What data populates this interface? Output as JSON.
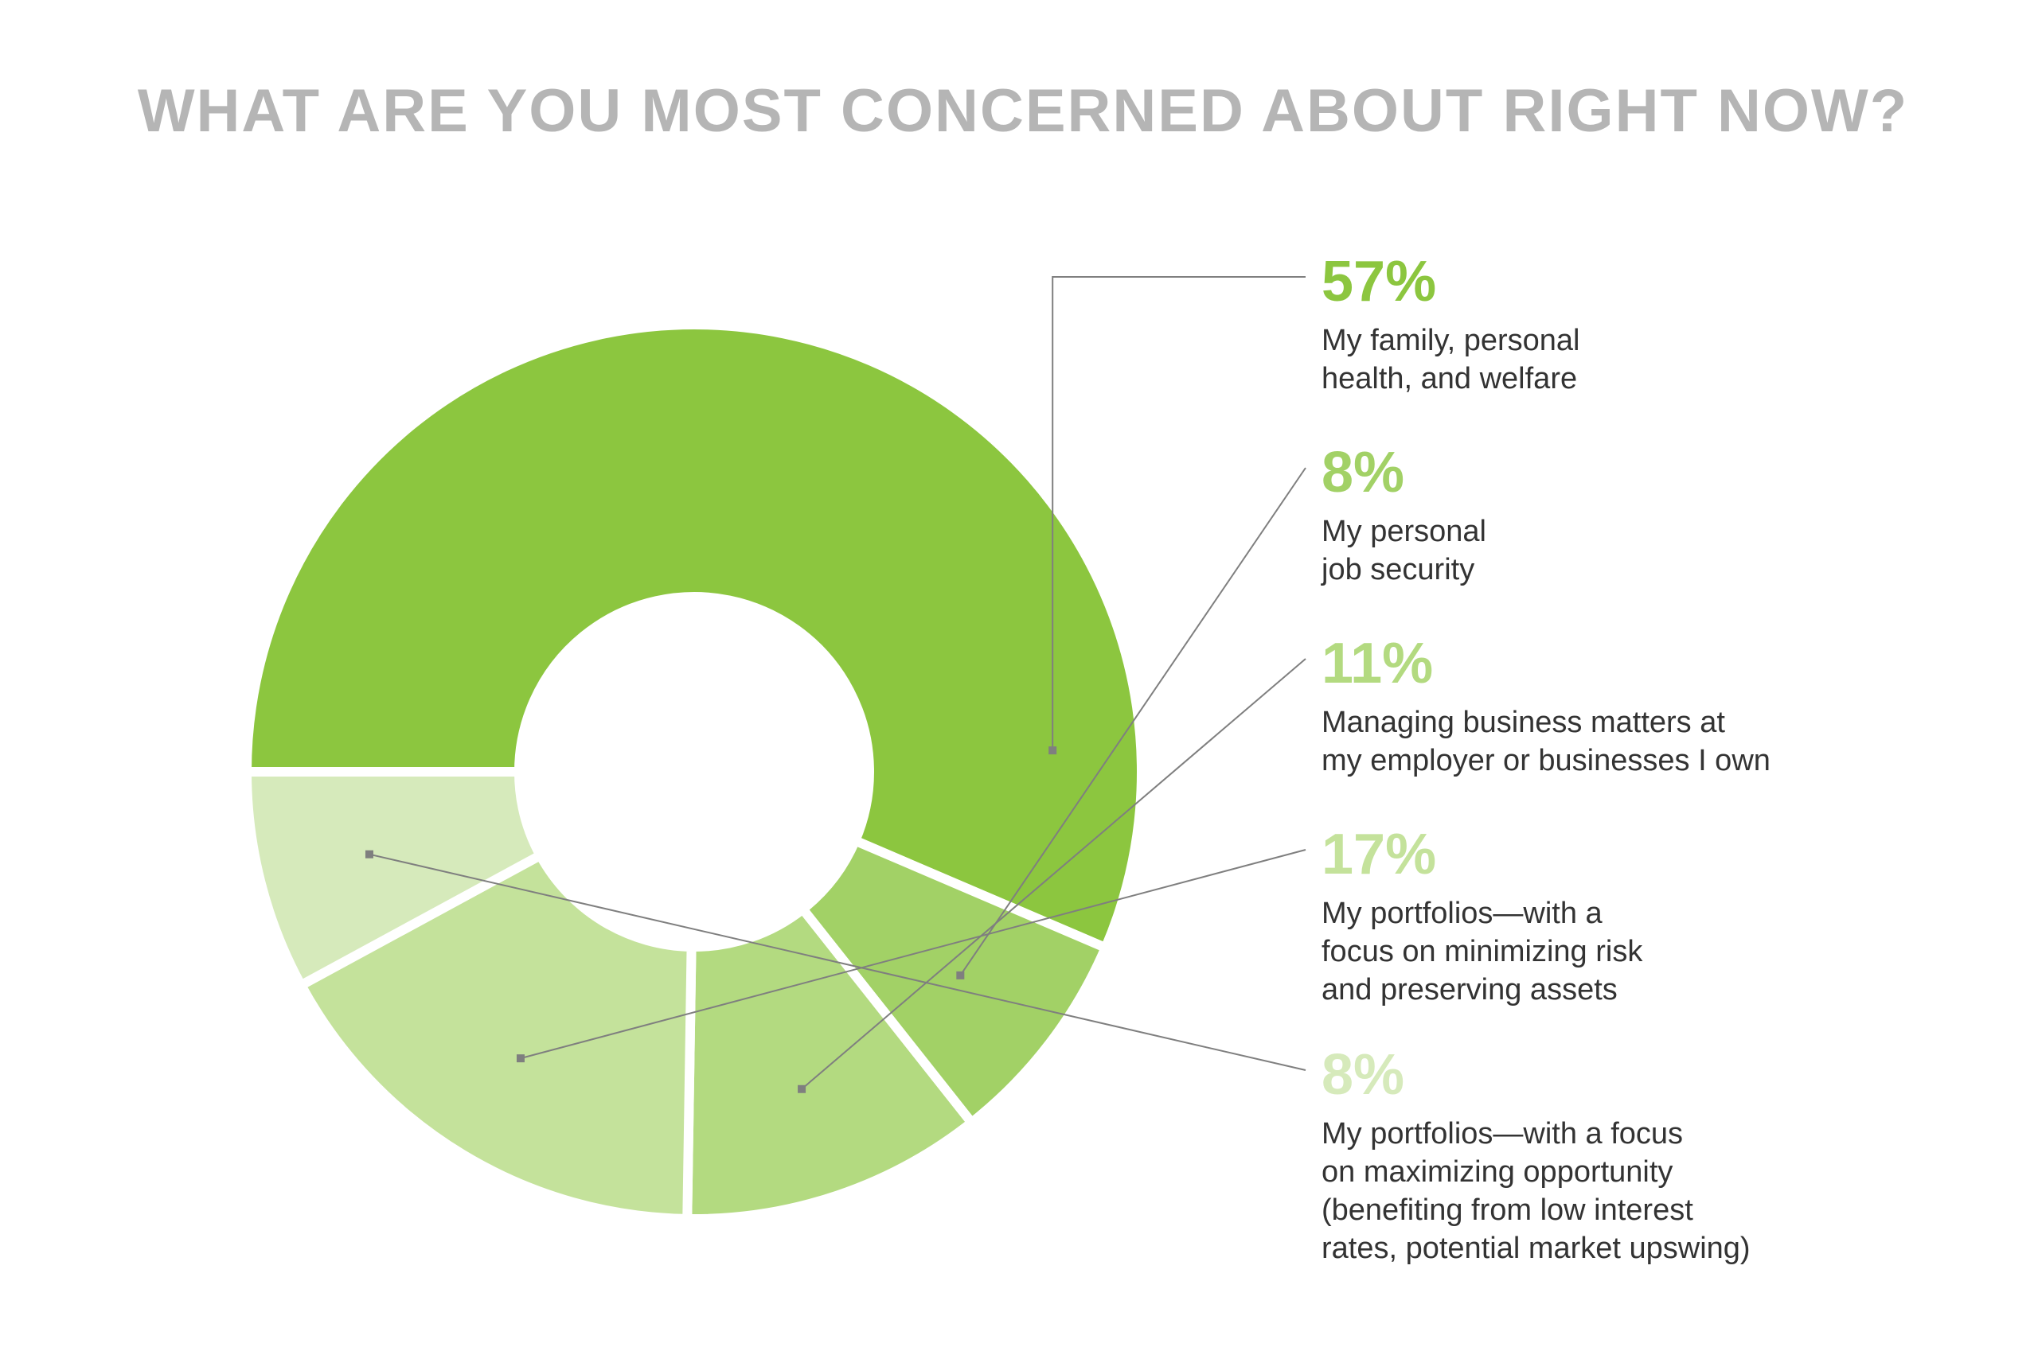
{
  "chart_data": {
    "type": "pie",
    "variant": "donut",
    "title": "WHAT ARE YOU MOST CONCERNED ABOUT RIGHT NOW?",
    "slices": [
      {
        "value": 57,
        "label": "57%",
        "description": [
          "My family, personal",
          "health, and welfare"
        ],
        "color": "#8cc63f"
      },
      {
        "value": 8,
        "label": "8%",
        "description": [
          "My personal",
          "job security"
        ],
        "color": "#a2d166"
      },
      {
        "value": 11,
        "label": "11%",
        "description": [
          "Managing business matters at",
          "my employer or businesses I own"
        ],
        "color": "#b3da80"
      },
      {
        "value": 17,
        "label": "17%",
        "description": [
          "My portfolios—with a",
          "focus on minimizing risk",
          "and preserving assets"
        ],
        "color": "#c4e29b"
      },
      {
        "value": 8,
        "label": "8%",
        "description": [
          "My portfolios—with a focus",
          "on maximizing opportunity",
          "(benefiting from low interest",
          "rates, potential market upswing)"
        ],
        "color": "#d6eabb"
      }
    ],
    "start_angle_deg": 180,
    "direction": "clockwise",
    "legend_position": "right",
    "leader_color": "#7f7f7f"
  }
}
